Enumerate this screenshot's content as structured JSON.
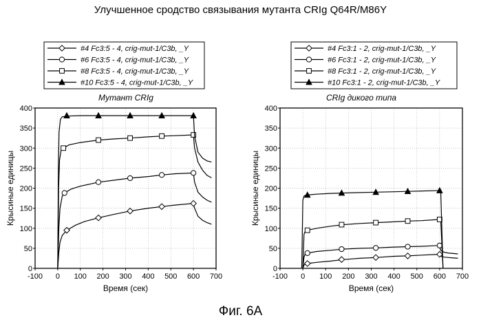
{
  "figure": {
    "title": "Улучшенное сродство связывания мутанта CRIg Q64R/M86Y",
    "caption": "Фиг. 6А"
  },
  "chart_data": [
    {
      "type": "line",
      "title": "Мутант CRIg",
      "xlabel": "Время (сек)",
      "ylabel": "Крысиные единицы",
      "xlim": [
        -100,
        700
      ],
      "ylim": [
        0,
        400
      ],
      "xticks": [
        -100,
        0,
        100,
        200,
        300,
        400,
        500,
        600,
        700
      ],
      "yticks": [
        0,
        50,
        100,
        150,
        200,
        250,
        300,
        350,
        400
      ],
      "grid": true,
      "legend_position": "above",
      "series": [
        {
          "name": "#4 Fc3:5 - 4, crig-mut-1/C3b, _Y",
          "marker": "diamond",
          "x": [
            0,
            5,
            10,
            20,
            40,
            80,
            120,
            180,
            250,
            320,
            400,
            460,
            520,
            600,
            605,
            620,
            640,
            660,
            680
          ],
          "y": [
            0,
            40,
            65,
            82,
            95,
            108,
            117,
            126,
            135,
            143,
            150,
            154,
            158,
            162,
            150,
            130,
            120,
            114,
            110
          ],
          "markers_x": [
            40,
            180,
            320,
            460,
            600
          ],
          "markers_y": [
            95,
            126,
            143,
            154,
            162
          ]
        },
        {
          "name": "#6 Fc3:5 - 4, crig-mut-1/C3b, _Y",
          "marker": "circle",
          "x": [
            0,
            5,
            10,
            20,
            30,
            60,
            100,
            180,
            250,
            320,
            400,
            460,
            520,
            600,
            605,
            620,
            640,
            660,
            680
          ],
          "y": [
            0,
            100,
            150,
            180,
            188,
            198,
            205,
            215,
            220,
            225,
            229,
            233,
            236,
            238,
            215,
            190,
            178,
            170,
            165
          ],
          "markers_x": [
            30,
            180,
            320,
            460,
            600
          ],
          "markers_y": [
            188,
            215,
            225,
            233,
            238
          ]
        },
        {
          "name": "#8 Fc3:5 - 4, crig-mut-1/C3b, _Y",
          "marker": "square",
          "x": [
            0,
            4,
            8,
            15,
            25,
            50,
            100,
            180,
            250,
            320,
            400,
            460,
            520,
            600,
            605,
            620,
            640,
            660,
            680
          ],
          "y": [
            0,
            200,
            270,
            295,
            300,
            308,
            314,
            320,
            323,
            325,
            328,
            330,
            331,
            333,
            300,
            265,
            245,
            232,
            226
          ],
          "markers_x": [
            25,
            180,
            320,
            460,
            600
          ],
          "markers_y": [
            300,
            320,
            325,
            330,
            333
          ]
        },
        {
          "name": "#10 Fc3:5 - 4, crig-mut-1/C3b, _Y",
          "marker": "triangle",
          "x": [
            0,
            3,
            6,
            12,
            20,
            40,
            100,
            180,
            250,
            320,
            400,
            460,
            520,
            600,
            605,
            620,
            640,
            660,
            680
          ],
          "y": [
            0,
            250,
            340,
            372,
            378,
            380,
            381,
            381,
            381,
            381,
            381,
            381,
            381,
            381,
            330,
            290,
            275,
            268,
            265
          ],
          "markers_x": [
            40,
            180,
            320,
            460,
            600
          ],
          "markers_y": [
            381,
            381,
            381,
            381,
            381
          ]
        }
      ]
    },
    {
      "type": "line",
      "title": "CRIg   дикого типа",
      "xlabel": "Время (сек)",
      "ylabel": "Крысиные единицы",
      "xlim": [
        -100,
        700
      ],
      "ylim": [
        0,
        400
      ],
      "xticks": [
        -100,
        0,
        100,
        200,
        300,
        400,
        500,
        600,
        700
      ],
      "yticks": [
        0,
        50,
        100,
        150,
        200,
        250,
        300,
        350,
        400
      ],
      "grid": true,
      "legend_position": "above",
      "series": [
        {
          "name": "#4 Fc3:1 - 2, crig-mut-1/C3b, _Y",
          "marker": "diamond",
          "x": [
            0,
            5,
            10,
            20,
            60,
            120,
            180,
            250,
            320,
            400,
            460,
            520,
            600,
            605,
            620,
            640,
            660,
            680
          ],
          "y": [
            0,
            8,
            10,
            12,
            15,
            18,
            22,
            25,
            27,
            30,
            31,
            33,
            35,
            30,
            28,
            27,
            26,
            25
          ],
          "markers_x": [
            20,
            170,
            320,
            460,
            600
          ],
          "markers_y": [
            12,
            22,
            27,
            31,
            35
          ]
        },
        {
          "name": "#6 Fc3:1 - 2, crig-mut-1/C3b, _Y",
          "marker": "circle",
          "x": [
            0,
            5,
            10,
            20,
            60,
            120,
            180,
            250,
            320,
            400,
            460,
            520,
            600,
            605,
            620,
            640,
            660,
            680
          ],
          "y": [
            0,
            28,
            35,
            38,
            42,
            45,
            48,
            50,
            51,
            53,
            54,
            55,
            57,
            45,
            40,
            38,
            37,
            36
          ],
          "markers_x": [
            20,
            170,
            320,
            460,
            600
          ],
          "markers_y": [
            38,
            48,
            51,
            54,
            57
          ]
        },
        {
          "name": "#8 Fc3:1 - 2, crig-mut-1/C3b, _Y",
          "marker": "square",
          "x": [
            0,
            5,
            10,
            20,
            60,
            120,
            180,
            250,
            320,
            400,
            460,
            520,
            600,
            605,
            615
          ],
          "y": [
            0,
            85,
            92,
            95,
            100,
            105,
            109,
            112,
            114,
            116,
            118,
            119,
            122,
            120,
            0
          ],
          "markers_x": [
            20,
            170,
            320,
            460,
            600
          ],
          "markers_y": [
            95,
            109,
            114,
            118,
            122
          ]
        },
        {
          "name": "#10 Fc3:1 - 2, crig-mut-1/C3b, _Y",
          "marker": "triangle",
          "x": [
            -5,
            0,
            5,
            10,
            20,
            60,
            120,
            180,
            250,
            320,
            400,
            460,
            520,
            600,
            605,
            615
          ],
          "y": [
            0,
            170,
            180,
            182,
            183,
            185,
            187,
            188,
            189,
            190,
            191,
            192,
            193,
            194,
            192,
            0
          ],
          "markers_x": [
            20,
            170,
            320,
            460,
            600
          ],
          "markers_y": [
            183,
            188,
            190,
            192,
            194
          ]
        }
      ]
    }
  ]
}
